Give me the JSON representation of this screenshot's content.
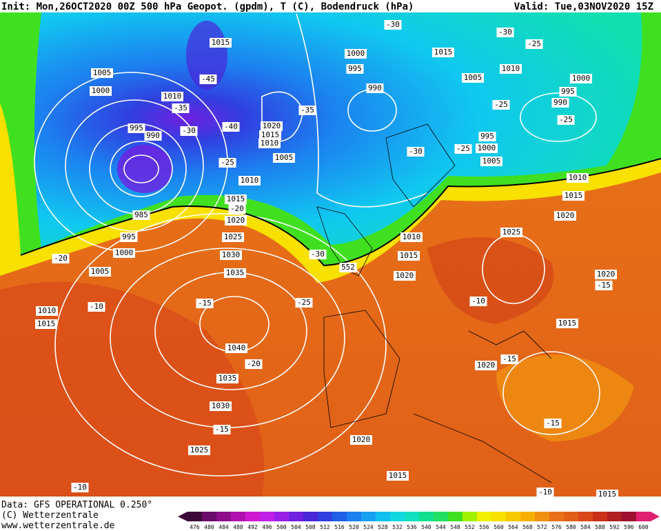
{
  "header": {
    "init": "Init: Mon,26OCT2020 00Z 500 hPa Geopot. (gpdm), T (C), Bodendruck (hPa)",
    "valid": "Valid: Tue,03NOV2020 15Z"
  },
  "footer": {
    "data": "Data: GFS OPERATIONAL 0.250°",
    "copyright": "(C) Wetterzentrale",
    "url": "www.wetterzentrale.de"
  },
  "colorbar": {
    "values": [
      476,
      480,
      484,
      488,
      492,
      496,
      500,
      504,
      508,
      512,
      516,
      520,
      524,
      528,
      532,
      536,
      540,
      544,
      548,
      552,
      556,
      560,
      564,
      568,
      572,
      576,
      580,
      584,
      588,
      592,
      596,
      600
    ],
    "colors": [
      "#3c0838",
      "#6a0a6a",
      "#8c0c8c",
      "#b010b0",
      "#d018d0",
      "#c020e8",
      "#9a20e8",
      "#7020e0",
      "#4828d8",
      "#3040e0",
      "#2060e8",
      "#1c80f0",
      "#18a0f0",
      "#10c0f0",
      "#10d8e0",
      "#10e0c0",
      "#10e090",
      "#20e060",
      "#40e020",
      "#a0f000",
      "#f0f000",
      "#f8e000",
      "#f8c800",
      "#f8b000",
      "#f09010",
      "#e87018",
      "#e06018",
      "#d84818",
      "#c83018",
      "#b02020",
      "#a01030",
      "#e02070"
    ]
  },
  "map_labels": [
    "1015",
    "1005",
    "1000",
    "1010",
    "-45",
    "-35",
    "-30",
    "995",
    "990",
    "-40",
    "1020",
    "1015",
    "1010",
    "1005",
    "-25",
    "1010",
    "1015",
    "-20",
    "1020",
    "985",
    "995",
    "1000",
    "1005",
    "-20",
    "1025",
    "1030",
    "1035",
    "-30",
    "552",
    "1000",
    "995",
    "990",
    "-35",
    "-30",
    "1015",
    "-30",
    "-25",
    "1010",
    "1005",
    "1000",
    "995",
    "990",
    "-25",
    "-25",
    "-30",
    "-25",
    "995",
    "1000",
    "1005",
    "1010",
    "1015",
    "1020",
    "1010",
    "1015",
    "1020",
    "1025",
    "-10",
    "1020",
    "-15",
    "1015",
    "-15",
    "1020",
    "-15",
    "-25",
    "-10",
    "1010",
    "1015",
    "1040",
    "-20",
    "1035",
    "1030",
    "-15",
    "1025",
    "1020",
    "1015",
    "-15",
    "-10",
    "-10",
    "1015"
  ]
}
